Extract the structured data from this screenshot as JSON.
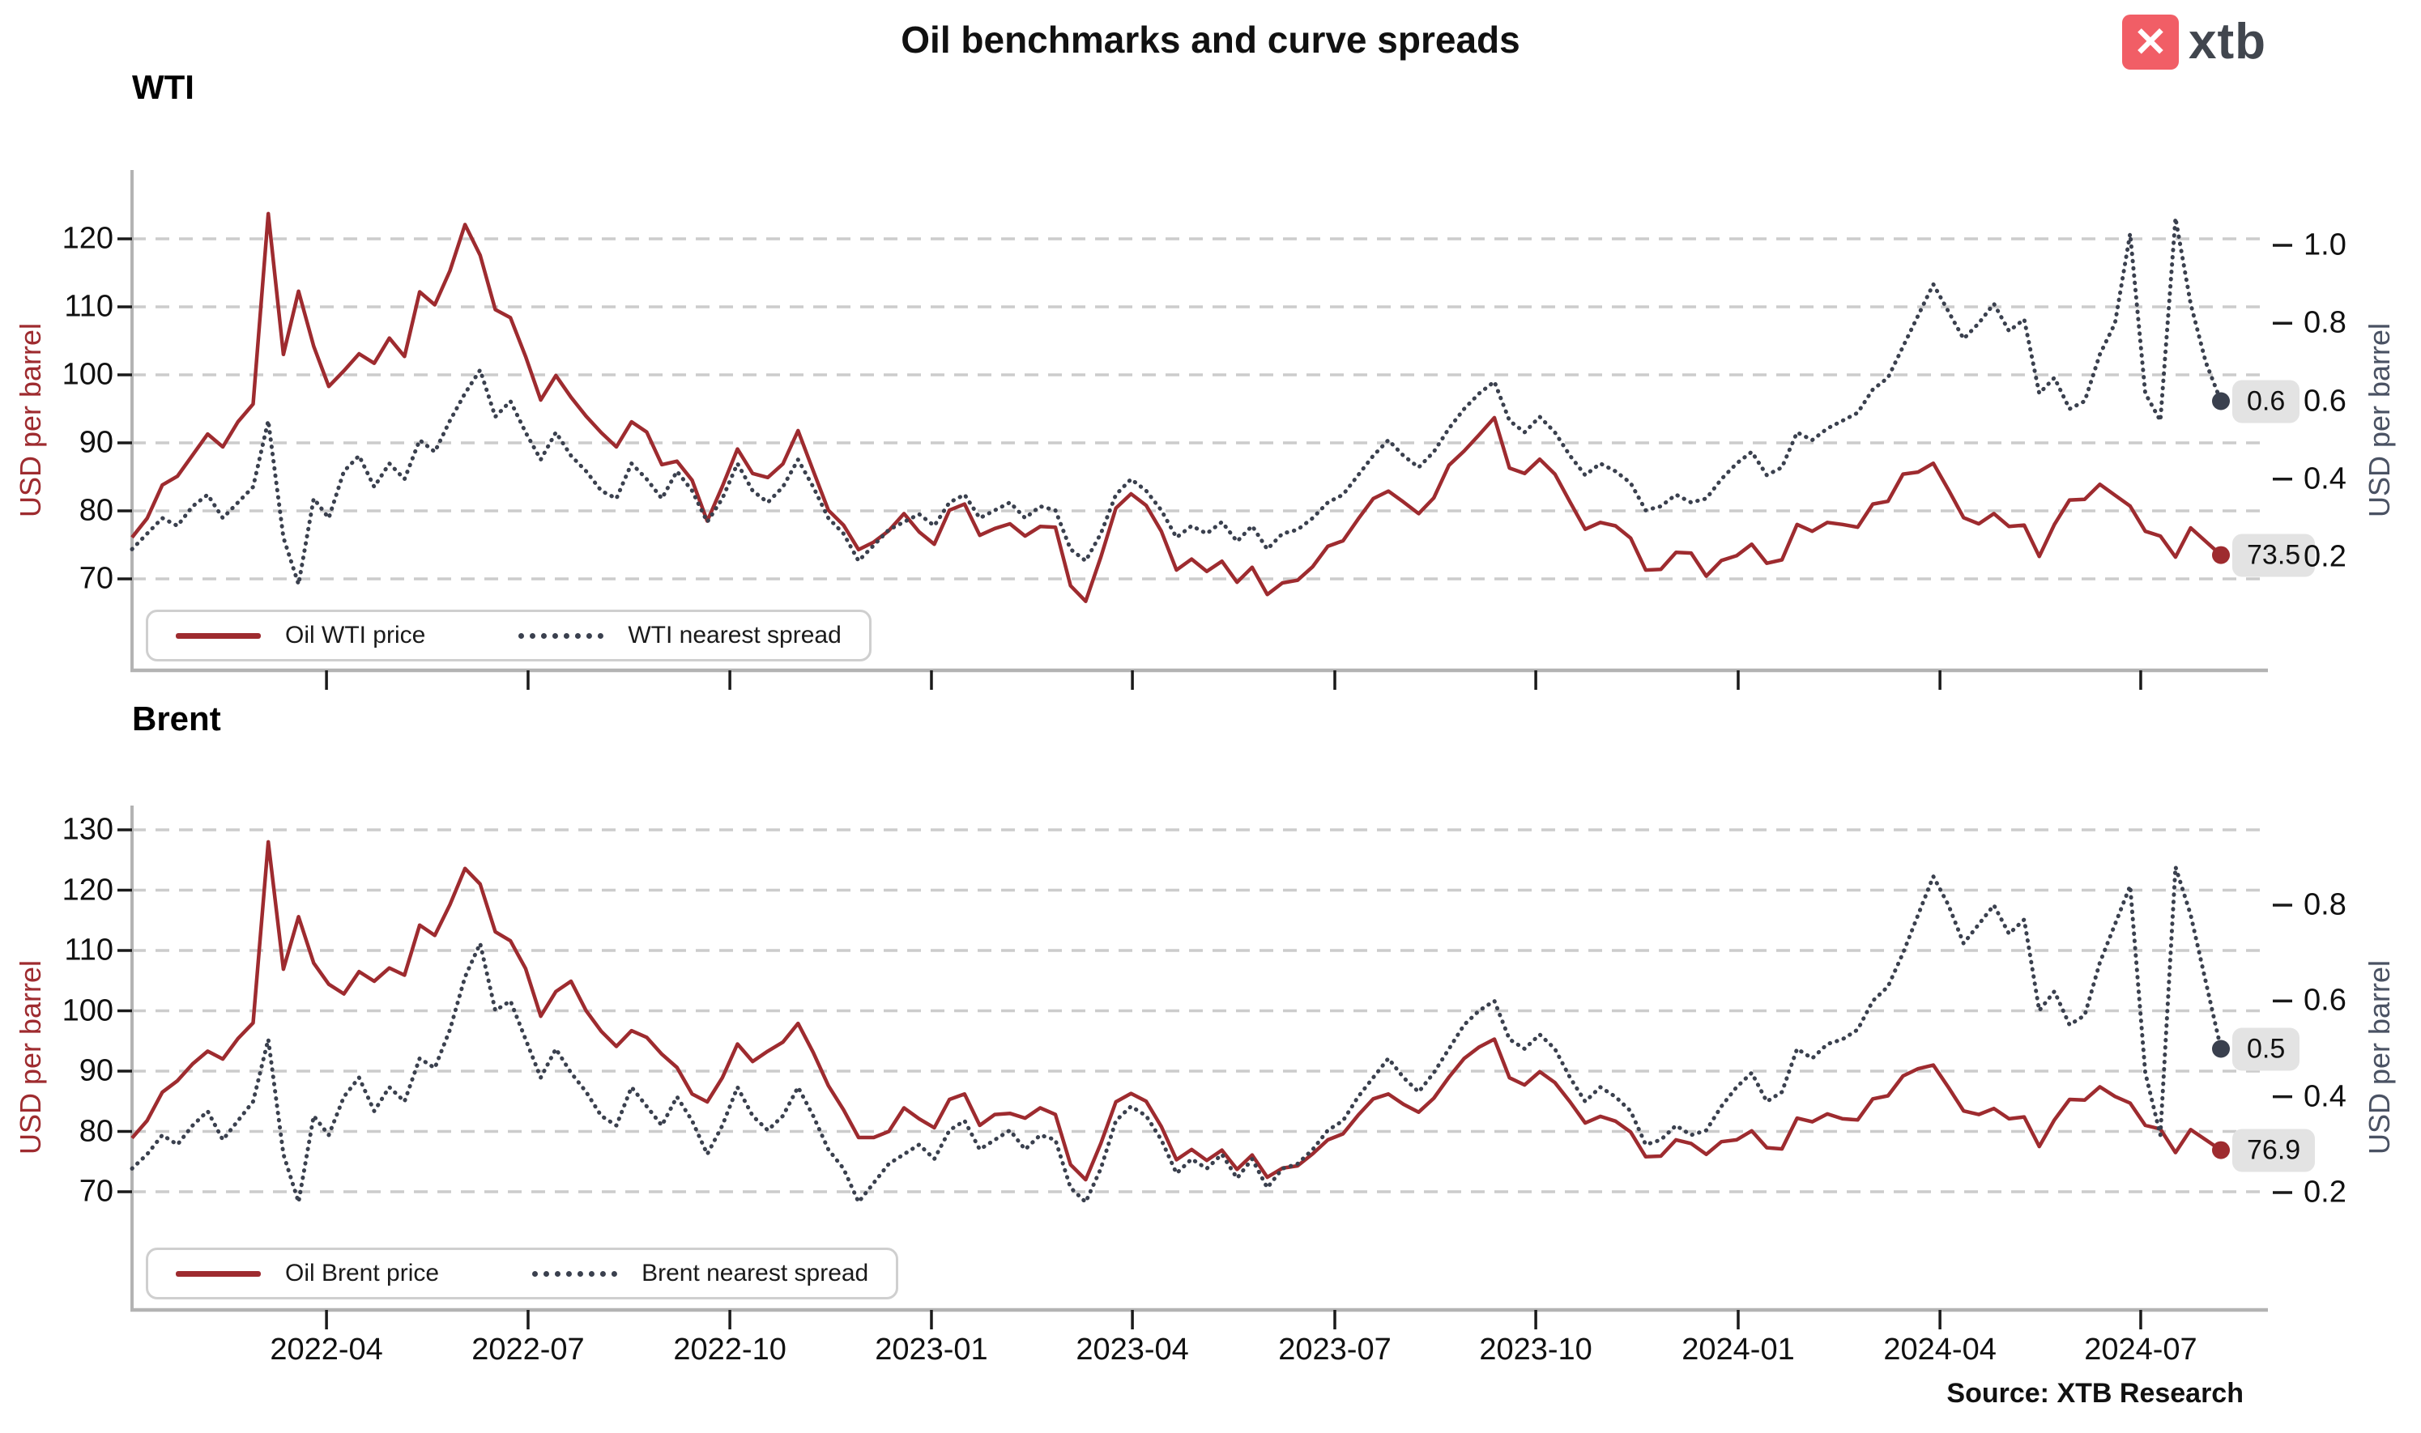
{
  "header": {
    "title": "Oil benchmarks and curve spreads",
    "logo_text": "xtb",
    "logo_x": "✕",
    "source": "Source: XTB Research"
  },
  "colors": {
    "price": "#9e2b2f",
    "spread": "#3a404e",
    "grid": "#cccccc",
    "axis": "#b3b3b3",
    "tick": "#1a1a1a",
    "badge_bg": "#e3e3e3",
    "left_axis_label": "#9e2b2f",
    "right_axis_label": "#4a5263",
    "logo_red": "#f15e66",
    "logo_text_color": "#41464e"
  },
  "x_axis": {
    "tick_labels": [
      "2022-04",
      "2022-07",
      "2022-10",
      "2023-01",
      "2023-04",
      "2023-07",
      "2023-10",
      "2024-01",
      "2024-04",
      "2024-07"
    ],
    "tick_positions": [
      0.0931,
      0.1896,
      0.2862,
      0.3827,
      0.4789,
      0.5758,
      0.672,
      0.7689,
      0.8655,
      0.9616
    ]
  },
  "chart_data": [
    {
      "type": "line",
      "title": "WTI",
      "left_axis": {
        "label": "USD per barrel",
        "ticks": [
          70,
          80,
          90,
          100,
          110,
          120
        ],
        "range": [
          56,
          130
        ]
      },
      "right_axis": {
        "label": "USD per barrel",
        "ticks": [
          0.2,
          0.4,
          0.6,
          0.8,
          1.0
        ],
        "range": [
          -0.1,
          1.19
        ]
      },
      "legend": [
        "Oil WTI price",
        "WTI nearest spread"
      ],
      "end_labels": {
        "price": "73.5",
        "spread": "0.6"
      },
      "series": [
        {
          "name": "Oil WTI price",
          "axis": "left",
          "style": "solid",
          "values": [
            76.1,
            78.9,
            83.8,
            85.1,
            88.2,
            91.3,
            89.4,
            93.1,
            95.7,
            123.7,
            103.0,
            112.3,
            104.2,
            98.3,
            100.6,
            103.1,
            101.7,
            105.4,
            102.7,
            112.2,
            110.3,
            115.3,
            122.1,
            117.6,
            109.6,
            108.4,
            102.7,
            96.3,
            99.9,
            96.7,
            93.9,
            91.5,
            89.4,
            93.1,
            91.6,
            86.8,
            87.3,
            84.5,
            78.5,
            83.6,
            89.1,
            85.5,
            84.9,
            86.9,
            91.8,
            85.9,
            80.1,
            77.9,
            74.3,
            75.4,
            77.1,
            79.6,
            76.9,
            75.1,
            80.1,
            81.0,
            76.4,
            77.4,
            78.1,
            76.3,
            77.7,
            77.6,
            69.0,
            66.7,
            73.2,
            80.4,
            82.5,
            80.8,
            77.0,
            71.3,
            72.9,
            71.1,
            72.6,
            69.5,
            71.7,
            67.7,
            69.4,
            69.8,
            71.8,
            74.8,
            75.6,
            78.8,
            81.8,
            82.9,
            81.3,
            79.6,
            81.9,
            86.7,
            88.8,
            91.2,
            93.7,
            86.3,
            85.5,
            87.6,
            85.4,
            81.3,
            77.3,
            78.3,
            77.8,
            76.0,
            71.3,
            71.4,
            73.9,
            73.8,
            70.4,
            72.7,
            73.4,
            75.1,
            72.3,
            72.8,
            78.0,
            77.0,
            78.3,
            78.0,
            77.6,
            81.0,
            81.4,
            85.4,
            85.7,
            87.0,
            83.1,
            79.0,
            78.1,
            79.6,
            77.7,
            77.9,
            73.3,
            78.0,
            81.6,
            81.7,
            83.9,
            82.3,
            80.7,
            77.0,
            76.3,
            73.2,
            77.5,
            75.5,
            73.5
          ]
        },
        {
          "name": "WTI nearest spread",
          "axis": "right",
          "style": "dotted",
          "values": [
            0.22,
            0.26,
            0.3,
            0.28,
            0.33,
            0.36,
            0.3,
            0.34,
            0.38,
            0.55,
            0.25,
            0.13,
            0.35,
            0.3,
            0.42,
            0.46,
            0.38,
            0.44,
            0.4,
            0.5,
            0.47,
            0.55,
            0.62,
            0.68,
            0.56,
            0.6,
            0.52,
            0.45,
            0.52,
            0.46,
            0.42,
            0.37,
            0.35,
            0.44,
            0.4,
            0.35,
            0.42,
            0.37,
            0.29,
            0.35,
            0.44,
            0.37,
            0.34,
            0.38,
            0.45,
            0.38,
            0.3,
            0.26,
            0.19,
            0.23,
            0.27,
            0.29,
            0.31,
            0.28,
            0.34,
            0.36,
            0.3,
            0.32,
            0.34,
            0.3,
            0.33,
            0.32,
            0.22,
            0.19,
            0.26,
            0.36,
            0.4,
            0.37,
            0.32,
            0.25,
            0.28,
            0.26,
            0.29,
            0.24,
            0.28,
            0.22,
            0.26,
            0.27,
            0.3,
            0.34,
            0.36,
            0.41,
            0.46,
            0.5,
            0.46,
            0.43,
            0.47,
            0.53,
            0.58,
            0.62,
            0.65,
            0.55,
            0.52,
            0.56,
            0.52,
            0.46,
            0.41,
            0.44,
            0.42,
            0.39,
            0.32,
            0.33,
            0.36,
            0.34,
            0.35,
            0.4,
            0.44,
            0.47,
            0.41,
            0.43,
            0.52,
            0.5,
            0.53,
            0.55,
            0.57,
            0.63,
            0.66,
            0.74,
            0.82,
            0.9,
            0.83,
            0.76,
            0.8,
            0.85,
            0.78,
            0.81,
            0.62,
            0.66,
            0.58,
            0.6,
            0.72,
            0.8,
            1.03,
            0.62,
            0.55,
            1.07,
            0.85,
            0.7,
            0.6
          ]
        }
      ]
    },
    {
      "type": "line",
      "title": "Brent",
      "left_axis": {
        "label": "USD per barrel",
        "ticks": [
          70,
          80,
          90,
          100,
          110,
          120,
          130
        ],
        "range": [
          50,
          134
        ]
      },
      "right_axis": {
        "label": "USD per barrel",
        "ticks": [
          0.2,
          0.4,
          0.6,
          0.8
        ],
        "range": [
          -0.03,
          1.0
        ]
      },
      "legend": [
        "Oil Brent price",
        "Brent nearest spread"
      ],
      "end_labels": {
        "price": "76.9",
        "spread": "0.5"
      },
      "series": [
        {
          "name": "Oil Brent price",
          "axis": "left",
          "style": "solid",
          "values": [
            78.9,
            81.8,
            86.5,
            88.4,
            91.2,
            93.3,
            92.0,
            95.4,
            98.0,
            128.0,
            106.9,
            115.6,
            107.9,
            104.4,
            102.8,
            106.5,
            104.9,
            107.1,
            105.9,
            114.2,
            112.5,
            117.6,
            123.6,
            121.0,
            113.1,
            111.6,
            107.0,
            99.1,
            103.2,
            104.9,
            100.0,
            96.6,
            94.1,
            96.7,
            95.6,
            92.8,
            90.6,
            86.2,
            84.9,
            88.9,
            94.5,
            91.6,
            93.3,
            94.8,
            97.9,
            93.1,
            87.6,
            83.6,
            79.0,
            79.0,
            80.0,
            83.9,
            82.1,
            80.6,
            85.3,
            86.2,
            81.0,
            82.8,
            83.0,
            82.2,
            83.9,
            82.8,
            74.5,
            72.0,
            78.0,
            84.9,
            86.3,
            85.0,
            80.8,
            75.3,
            77.0,
            75.2,
            76.9,
            73.7,
            76.1,
            72.4,
            73.9,
            74.3,
            76.3,
            78.6,
            79.6,
            82.7,
            85.4,
            86.2,
            84.5,
            83.2,
            85.5,
            89.0,
            92.1,
            94.0,
            95.3,
            88.9,
            87.7,
            89.9,
            88.1,
            84.9,
            81.4,
            82.5,
            81.7,
            79.9,
            75.8,
            75.9,
            78.6,
            78.0,
            76.2,
            78.3,
            78.6,
            80.1,
            77.3,
            77.1,
            82.2,
            81.6,
            82.9,
            82.1,
            81.9,
            85.4,
            85.9,
            89.2,
            90.4,
            91.0,
            87.3,
            83.4,
            82.8,
            83.8,
            82.1,
            82.4,
            77.5,
            81.9,
            85.3,
            85.2,
            87.4,
            85.8,
            84.7,
            81.0,
            80.4,
            76.5,
            80.3,
            78.6,
            76.9
          ]
        },
        {
          "name": "Brent nearest spread",
          "axis": "right",
          "style": "dotted",
          "values": [
            0.25,
            0.28,
            0.32,
            0.3,
            0.34,
            0.37,
            0.31,
            0.35,
            0.39,
            0.52,
            0.28,
            0.18,
            0.36,
            0.32,
            0.4,
            0.44,
            0.37,
            0.42,
            0.39,
            0.48,
            0.46,
            0.54,
            0.65,
            0.72,
            0.58,
            0.6,
            0.52,
            0.44,
            0.5,
            0.45,
            0.41,
            0.36,
            0.34,
            0.42,
            0.38,
            0.34,
            0.4,
            0.35,
            0.28,
            0.34,
            0.42,
            0.36,
            0.33,
            0.36,
            0.42,
            0.36,
            0.29,
            0.25,
            0.18,
            0.22,
            0.26,
            0.28,
            0.3,
            0.27,
            0.33,
            0.35,
            0.29,
            0.31,
            0.33,
            0.29,
            0.32,
            0.31,
            0.21,
            0.18,
            0.25,
            0.35,
            0.38,
            0.36,
            0.31,
            0.24,
            0.27,
            0.25,
            0.28,
            0.23,
            0.27,
            0.21,
            0.25,
            0.26,
            0.29,
            0.33,
            0.35,
            0.4,
            0.44,
            0.48,
            0.44,
            0.41,
            0.45,
            0.5,
            0.55,
            0.58,
            0.6,
            0.52,
            0.5,
            0.53,
            0.5,
            0.44,
            0.39,
            0.42,
            0.4,
            0.37,
            0.3,
            0.31,
            0.34,
            0.32,
            0.33,
            0.38,
            0.42,
            0.45,
            0.39,
            0.41,
            0.5,
            0.48,
            0.51,
            0.52,
            0.54,
            0.6,
            0.63,
            0.7,
            0.78,
            0.86,
            0.8,
            0.72,
            0.76,
            0.8,
            0.74,
            0.77,
            0.58,
            0.62,
            0.55,
            0.57,
            0.68,
            0.76,
            0.84,
            0.45,
            0.32,
            0.88,
            0.78,
            0.64,
            0.5
          ]
        }
      ]
    }
  ]
}
